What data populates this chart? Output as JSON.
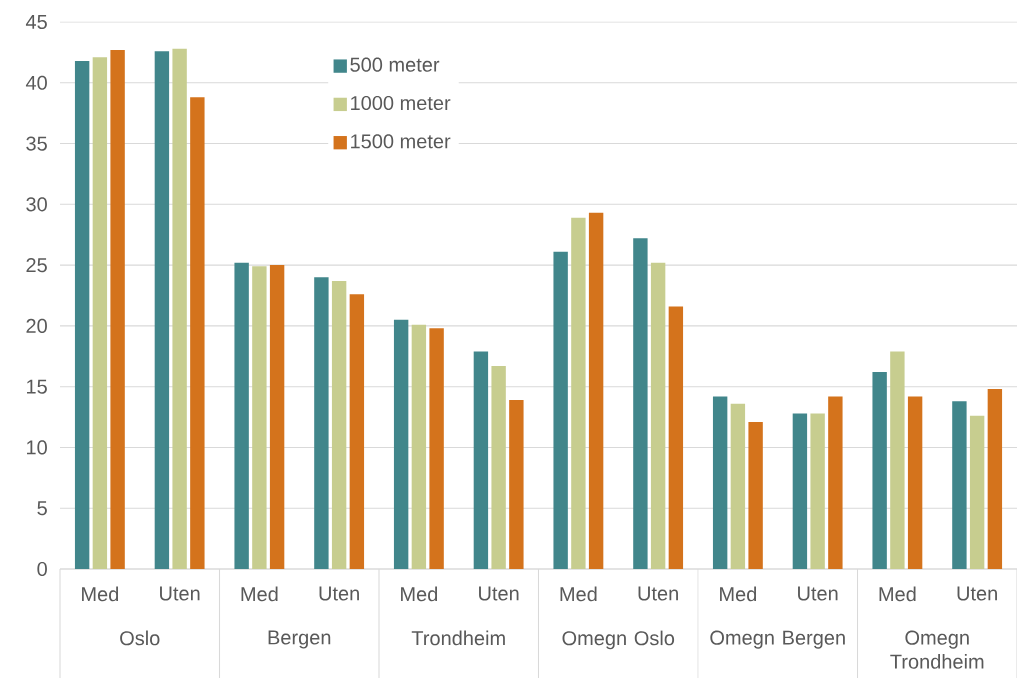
{
  "chart_data": {
    "type": "bar",
    "categories": [
      "Med",
      "Uten",
      "Med",
      "Uten",
      "Med",
      "Uten",
      "Med",
      "Uten",
      "Med",
      "Uten",
      "Med",
      "Uten"
    ],
    "series": [
      {
        "name": "500 meter",
        "color": "#41868b",
        "values": [
          41.8,
          42.6,
          25.2,
          24.0,
          20.5,
          17.9,
          26.1,
          27.2,
          14.2,
          12.8,
          16.2,
          13.8
        ]
      },
      {
        "name": "1000 meter",
        "color": "#c7cd8f",
        "values": [
          42.1,
          42.8,
          24.9,
          23.7,
          20.1,
          16.7,
          28.9,
          25.2,
          13.6,
          12.8,
          17.9,
          12.6
        ]
      },
      {
        "name": "1500 meter",
        "color": "#d4731c",
        "values": [
          42.7,
          38.8,
          25.0,
          22.6,
          19.8,
          13.9,
          29.3,
          21.6,
          12.1,
          14.2,
          14.2,
          14.8
        ]
      }
    ],
    "annotations": [
      "Oslo",
      "Bergen",
      "Trondheim",
      "Omegn Oslo",
      "Omegn Bergen",
      "Omegn Trondheim"
    ],
    "ylim": [
      0,
      45
    ],
    "yticks": [
      0,
      5,
      10,
      15,
      20,
      25,
      30,
      35,
      40,
      45
    ],
    "grid": "y",
    "legend": "top"
  }
}
